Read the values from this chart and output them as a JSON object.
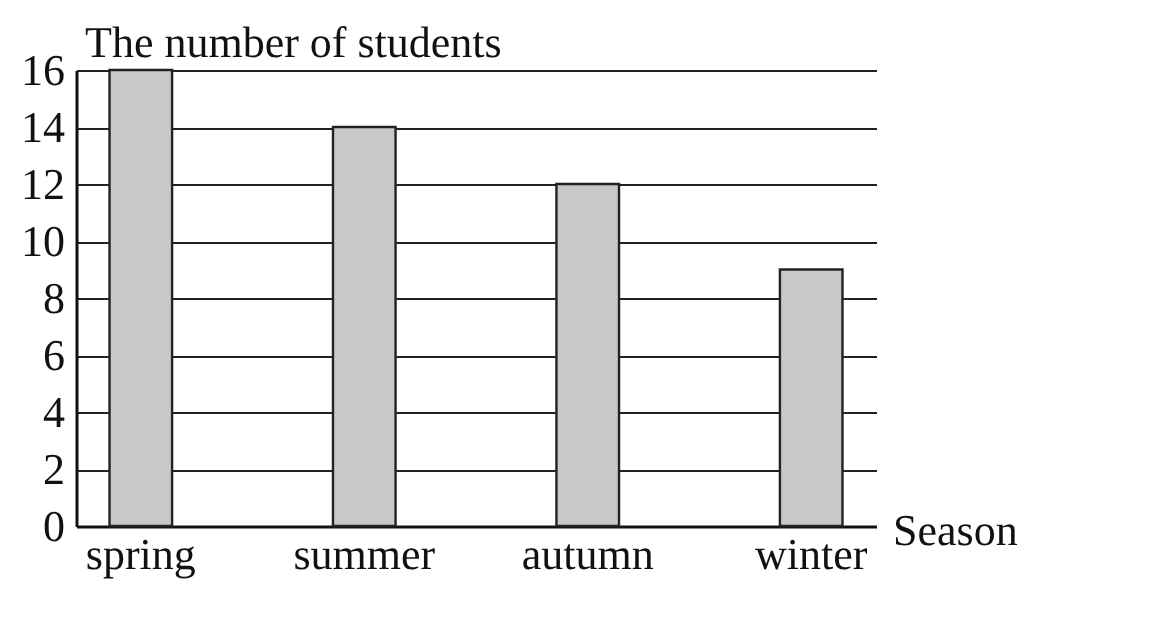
{
  "chart_data": {
    "type": "bar",
    "xlabel": "Season",
    "ylabel": "The number of students",
    "categories": [
      "spring",
      "summer",
      "autumn",
      "winter"
    ],
    "values": [
      16,
      14,
      12,
      9
    ],
    "color": "#c8c8c8",
    "ylim": [
      0,
      16
    ],
    "yticks": [
      0,
      2,
      4,
      6,
      8,
      10,
      12,
      14,
      16
    ],
    "grid": "y"
  }
}
